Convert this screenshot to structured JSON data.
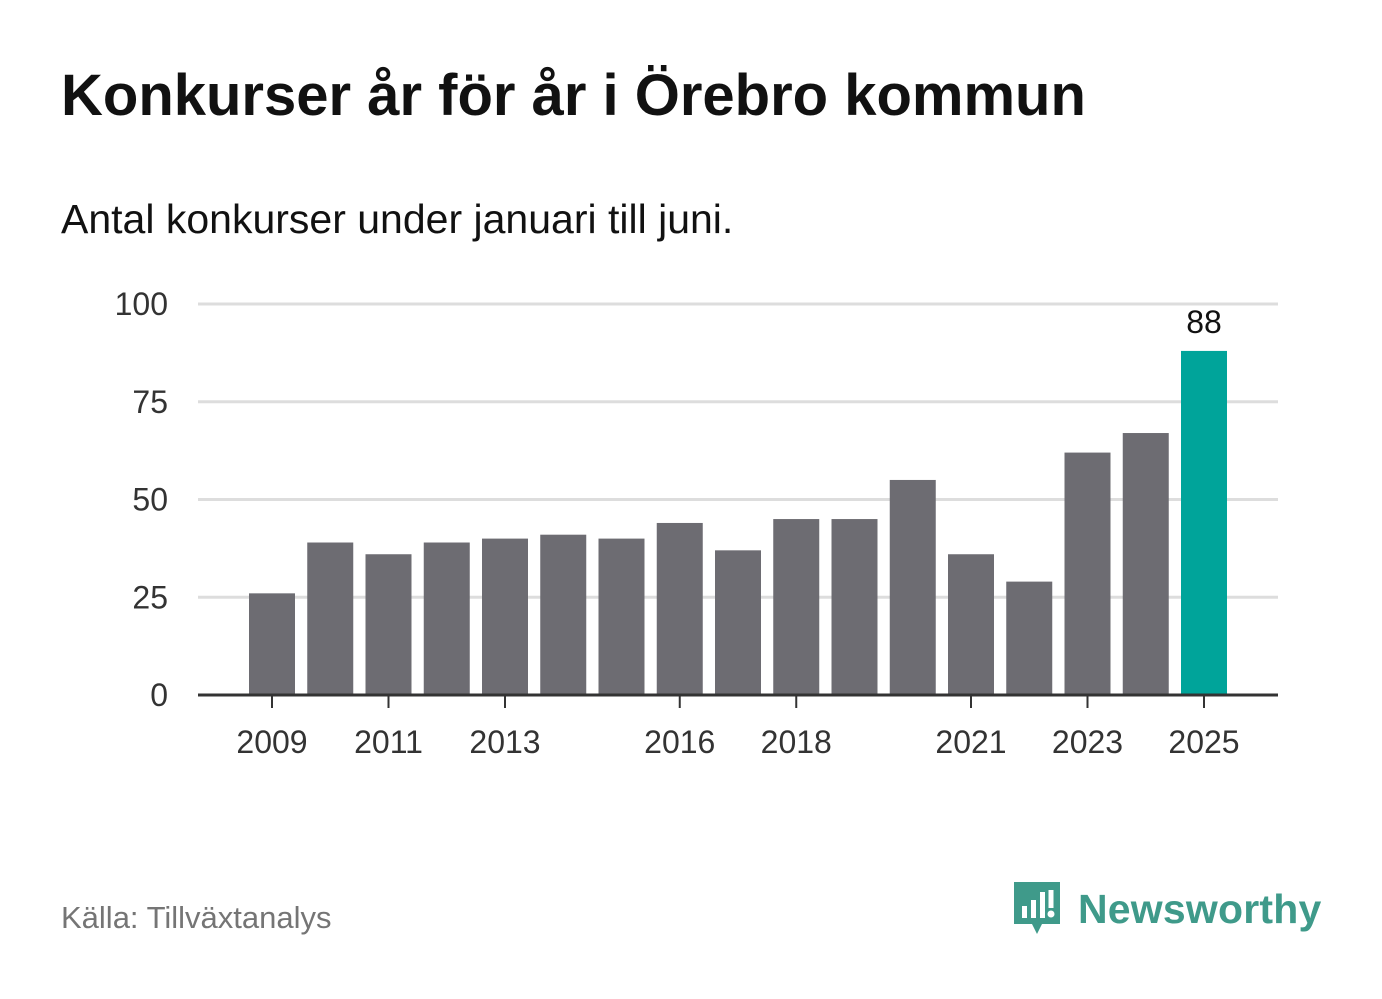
{
  "title": "Konkurser år för år i Örebro kommun",
  "subtitle": "Antal konkurser under januari till juni.",
  "source": "Källa: Tillväxtanalys",
  "brand": {
    "name": "Newsworthy",
    "icon": "newsworthy-logo-icon",
    "color": "#3f9a8a"
  },
  "chart_data": {
    "type": "bar",
    "categories": [
      "2009",
      "2010",
      "2011",
      "2012",
      "2013",
      "2014",
      "2015",
      "2016",
      "2017",
      "2018",
      "2019",
      "2020",
      "2021",
      "2022",
      "2023",
      "2024",
      "2025"
    ],
    "values": [
      26,
      39,
      36,
      39,
      40,
      41,
      40,
      44,
      37,
      45,
      45,
      55,
      36,
      29,
      62,
      67,
      88
    ],
    "x_tick_labels": [
      "2009",
      "2011",
      "2013",
      "2016",
      "2018",
      "2021",
      "2023",
      "2025"
    ],
    "y_ticks": [
      0,
      25,
      50,
      75,
      100
    ],
    "ylim": [
      0,
      100
    ],
    "grid": true,
    "highlight": {
      "category": "2025",
      "label": "88"
    },
    "colors": {
      "bar": "#6d6c72",
      "highlight": "#00a49a",
      "grid": "#dddddd",
      "axis": "#333333"
    }
  }
}
